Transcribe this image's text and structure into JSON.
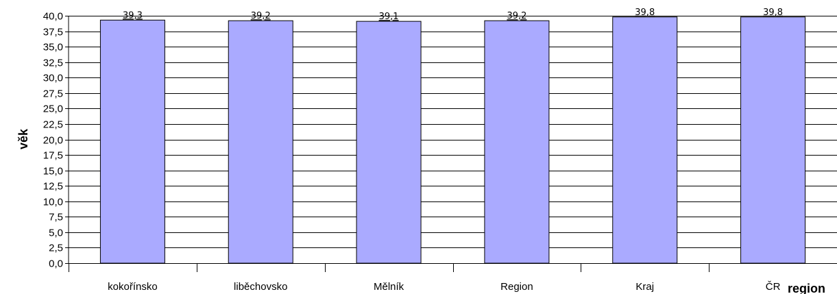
{
  "chart_data": {
    "type": "bar",
    "categories": [
      "kokořínsko",
      "liběchovsko",
      "Mělník",
      "Region",
      "Kraj",
      "ČR"
    ],
    "values": [
      39.3,
      39.2,
      39.1,
      39.2,
      39.8,
      39.8
    ],
    "data_labels": [
      "39,3",
      "39,2",
      "39,1",
      "39,2",
      "39,8",
      "39,8"
    ],
    "ylabel": "věk",
    "xlabel": "region",
    "ylim": [
      0,
      40
    ],
    "ytick_step": 2.5,
    "ytick_labels": [
      "0,0",
      "2,5",
      "5,0",
      "7,5",
      "10,0",
      "12,5",
      "15,0",
      "17,5",
      "20,0",
      "22,5",
      "25,0",
      "27,5",
      "30,0",
      "32,5",
      "35,0",
      "37,5",
      "40,0"
    ],
    "grid": true,
    "legend": "none",
    "colors": {
      "bar_fill": "#aaaaff",
      "bar_stroke": "#000000",
      "grid": "#000000"
    }
  }
}
